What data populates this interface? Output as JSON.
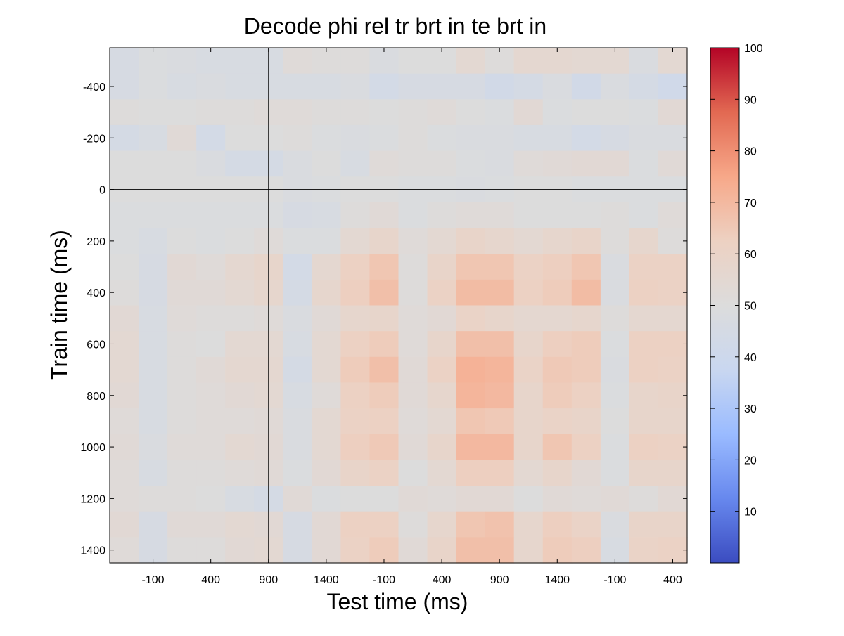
{
  "chart_data": {
    "type": "heatmap",
    "title": "Decode phi rel tr brt in te brt in",
    "xlabel": "Test time (ms)",
    "ylabel": "Train time (ms)",
    "x_tick_labels": [
      "-100",
      "400",
      "900",
      "1400",
      "-100",
      "400",
      "900",
      "1400",
      "-100",
      "400"
    ],
    "y_tick_labels": [
      "-400",
      "-200",
      "0",
      "200",
      "400",
      "600",
      "800",
      "1000",
      "1200",
      "1400"
    ],
    "colorbar": {
      "min": 0,
      "max": 100,
      "tick_labels": [
        "10",
        "20",
        "30",
        "40",
        "50",
        "60",
        "70",
        "80",
        "90",
        "100"
      ],
      "colors": [
        "#3b4cc0",
        "#6788ee",
        "#9abbff",
        "#c9d7f0",
        "#dcdcdc",
        "#edd1c2",
        "#f7a889",
        "#e26952",
        "#b40426"
      ]
    },
    "x_ref_line_col": 5.5,
    "y_ref_line_row": 5.5,
    "n_rows": 20,
    "n_cols": 20,
    "values": [
      [
        46,
        49,
        48,
        47,
        47,
        47,
        52,
        51,
        51,
        48,
        50,
        50,
        55,
        51,
        56,
        56,
        55,
        55,
        48,
        55
      ],
      [
        46,
        49,
        47,
        48,
        47,
        47,
        47,
        47,
        48,
        44,
        46,
        46,
        46,
        43,
        45,
        48,
        43,
        48,
        45,
        42
      ],
      [
        51,
        50,
        50,
        51,
        51,
        52,
        52,
        51,
        51,
        50,
        51,
        52,
        50,
        49,
        54,
        49,
        50,
        50,
        49,
        54
      ],
      [
        45,
        47,
        53,
        44,
        50,
        50,
        51,
        49,
        48,
        49,
        51,
        49,
        48,
        48,
        47,
        47,
        44,
        46,
        48,
        48
      ],
      [
        50,
        50,
        50,
        48,
        45,
        45,
        48,
        50,
        47,
        52,
        51,
        51,
        49,
        48,
        52,
        53,
        54,
        54,
        49,
        53
      ],
      [
        50,
        50,
        50,
        50,
        50,
        50,
        48,
        49,
        50,
        50,
        49,
        49,
        48,
        49,
        50,
        50,
        49,
        49,
        49,
        49
      ],
      [
        49,
        49,
        49,
        49,
        49,
        49,
        46,
        47,
        51,
        53,
        49,
        51,
        52,
        52,
        50,
        50,
        50,
        51,
        49,
        52
      ],
      [
        49,
        47,
        50,
        49,
        50,
        52,
        49,
        49,
        55,
        58,
        52,
        55,
        59,
        57,
        55,
        57,
        59,
        51,
        57,
        51
      ],
      [
        50,
        46,
        54,
        52,
        56,
        58,
        44,
        56,
        62,
        66,
        51,
        59,
        66,
        66,
        61,
        63,
        66,
        48,
        61,
        61
      ],
      [
        51,
        46,
        53,
        53,
        55,
        57,
        45,
        57,
        63,
        68,
        51,
        61,
        69,
        69,
        62,
        64,
        69,
        48,
        62,
        61
      ],
      [
        54,
        47,
        52,
        51,
        51,
        52,
        48,
        53,
        57,
        58,
        52,
        54,
        60,
        58,
        56,
        56,
        57,
        51,
        56,
        56
      ],
      [
        55,
        47,
        51,
        50,
        55,
        55,
        47,
        55,
        62,
        64,
        52,
        58,
        68,
        68,
        58,
        63,
        64,
        49,
        62,
        62
      ],
      [
        55,
        47,
        51,
        53,
        56,
        56,
        45,
        55,
        64,
        68,
        53,
        61,
        72,
        71,
        60,
        65,
        64,
        48,
        62,
        61
      ],
      [
        54,
        47,
        51,
        52,
        54,
        55,
        47,
        52,
        62,
        64,
        53,
        57,
        71,
        70,
        58,
        64,
        62,
        49,
        58,
        59
      ],
      [
        52,
        47,
        51,
        52,
        52,
        53,
        48,
        55,
        61,
        62,
        52,
        55,
        66,
        65,
        58,
        60,
        59,
        50,
        58,
        58
      ],
      [
        53,
        48,
        52,
        52,
        55,
        54,
        48,
        55,
        63,
        65,
        53,
        58,
        70,
        70,
        58,
        66,
        62,
        49,
        62,
        61
      ],
      [
        52,
        47,
        51,
        51,
        52,
        53,
        49,
        54,
        59,
        61,
        50,
        55,
        63,
        63,
        55,
        58,
        54,
        49,
        58,
        58
      ],
      [
        52,
        51,
        51,
        50,
        47,
        45,
        53,
        49,
        50,
        50,
        53,
        52,
        54,
        54,
        50,
        53,
        52,
        53,
        51,
        54
      ],
      [
        54,
        46,
        53,
        53,
        55,
        54,
        46,
        54,
        62,
        62,
        51,
        57,
        66,
        67,
        57,
        63,
        60,
        48,
        59,
        59
      ],
      [
        52,
        46,
        51,
        51,
        54,
        55,
        46,
        54,
        61,
        64,
        53,
        59,
        68,
        68,
        57,
        64,
        63,
        47,
        60,
        61
      ]
    ]
  }
}
